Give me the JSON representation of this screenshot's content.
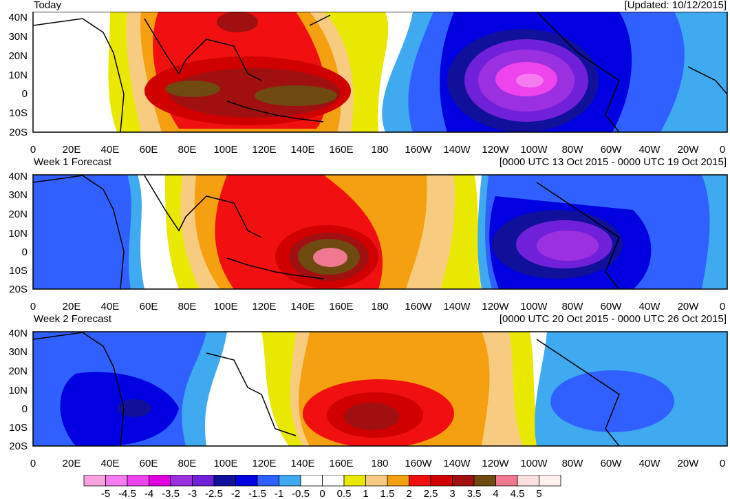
{
  "panels": [
    {
      "title": "Today",
      "info": "[Updated: 10/12/2015]"
    },
    {
      "title": "Week 1 Forecast",
      "info": "[0000 UTC 13 Oct 2015 - 0000 UTC 19 Oct 2015]"
    },
    {
      "title": "Week 2 Forecast",
      "info": "[0000 UTC 20 Oct 2015 - 0000 UTC 26 Oct 2015]"
    }
  ],
  "lat_labels": [
    "40N",
    "30N",
    "20N",
    "10N",
    "0",
    "10S",
    "20S"
  ],
  "lon_labels": [
    "0",
    "20E",
    "40E",
    "60E",
    "80E",
    "100E",
    "120E",
    "140E",
    "160E",
    "180",
    "160W",
    "140W",
    "120W",
    "100W",
    "80W",
    "60W",
    "40W",
    "20W",
    "0"
  ],
  "colorbar": {
    "labels": [
      "-5",
      "-4.5",
      "-4",
      "-3.5",
      "-3",
      "-2.5",
      "-2",
      "-1.5",
      "-1",
      "-0.5",
      "0",
      "0.5",
      "1",
      "1.5",
      "2",
      "2.5",
      "3",
      "3.5",
      "4",
      "4.5",
      "5"
    ],
    "colors": [
      "#f7a3e0",
      "#f47cf0",
      "#ee44ee",
      "#e000e0",
      "#9b30e0",
      "#7020d8",
      "#10109a",
      "#0000e0",
      "#3060ff",
      "#3faaf0",
      "#ffffff",
      "#ffffff",
      "#e8e800",
      "#f8cc80",
      "#f4a010",
      "#f01010",
      "#d00000",
      "#a01010",
      "#6e4a10",
      "#f07890",
      "#fce0e0",
      "#fff0f0"
    ]
  },
  "colors": {
    "land_outline": "#000000",
    "border": "#000000"
  }
}
